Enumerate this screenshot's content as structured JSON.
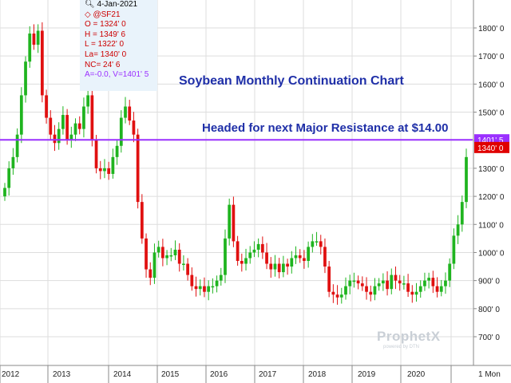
{
  "chart_data": {
    "type": "candlestick",
    "title": "Soybean Monthly Continuation Chart",
    "annotation": "Headed for next Major Resistance at $14.00",
    "period": "1 Mon",
    "resistance_line": {
      "value": 1401.5,
      "label": "1401' 5",
      "color": "#9b30ff"
    },
    "last_price": {
      "value": 1340,
      "label": "1340' 0",
      "color": "#e00000"
    },
    "ylim": [
      620,
      1880
    ],
    "yticks": [
      {
        "v": 700,
        "label": "700' 0"
      },
      {
        "v": 800,
        "label": "800' 0"
      },
      {
        "v": 900,
        "label": "900' 0"
      },
      {
        "v": 1000,
        "label": "1000' 0"
      },
      {
        "v": 1100,
        "label": "1100' 0"
      },
      {
        "v": 1200,
        "label": "1200' 0"
      },
      {
        "v": 1300,
        "label": "1300' 0"
      },
      {
        "v": 1400,
        "label": "1400' 0"
      },
      {
        "v": 1500,
        "label": "1500' 0"
      },
      {
        "v": 1600,
        "label": "1600' 0"
      },
      {
        "v": 1700,
        "label": "1700' 0"
      },
      {
        "v": 1800,
        "label": "1800' 0"
      }
    ],
    "xlabels": [
      "2012",
      "2013",
      "2014",
      "2015",
      "2016",
      "2017",
      "2018",
      "2019",
      "2020"
    ],
    "grid": true,
    "up_color": "#1fb41f",
    "down_color": "#e01010",
    "closes": [
      1230,
      1300,
      1340,
      1420,
      1560,
      1680,
      1780,
      1740,
      1790,
      1560,
      1480,
      1420,
      1390,
      1440,
      1490,
      1400,
      1420,
      1460,
      1440,
      1520,
      1560,
      1400,
      1300,
      1290,
      1300,
      1280,
      1340,
      1380,
      1480,
      1520,
      1470,
      1420,
      1180,
      1050,
      940,
      910,
      1000,
      1020,
      980,
      990,
      990,
      1010,
      960,
      960,
      920,
      880,
      870,
      880,
      860,
      880,
      880,
      900,
      920,
      1050,
      1170,
      1040,
      970,
      960,
      980,
      1000,
      1010,
      1030,
      1000,
      960,
      940,
      960,
      930,
      960,
      950,
      980,
      990,
      980,
      970,
      1020,
      1040,
      1040,
      1020,
      950,
      860,
      850,
      840,
      850,
      880,
      900,
      900,
      890,
      880,
      860,
      850,
      880,
      890,
      900,
      870,
      920,
      900,
      890,
      890,
      860,
      850,
      860,
      880,
      900,
      910,
      880,
      860,
      880,
      900,
      960,
      1060,
      1100,
      1180,
      1340
    ],
    "info": {
      "date": "4-Jan-2021",
      "symbol": "@SF21",
      "open": "O = 1324' 0",
      "high": "H = 1349' 6",
      "low": "L = 1322' 0",
      "last": "La= 1340' 0",
      "net_change": "NC= 24' 6",
      "extra": "A=-0.0, V=1401' 5"
    },
    "watermark": "ProphetX",
    "watermark_sub": "powered by DTN"
  }
}
